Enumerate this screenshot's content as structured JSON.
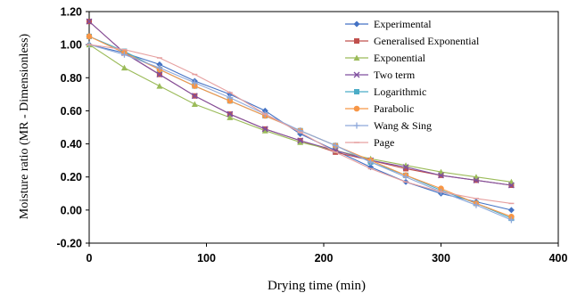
{
  "chart_data": {
    "type": "line",
    "xlabel": "Drying time (min)",
    "ylabel": "Moisture ratio (MR - Dimensionless)",
    "xlim": [
      0,
      400
    ],
    "ylim": [
      -0.2,
      1.2
    ],
    "xticks": [
      0,
      100,
      200,
      300,
      400
    ],
    "yticks": [
      -0.2,
      0.0,
      0.2,
      0.4,
      0.6,
      0.8,
      1.0,
      1.2
    ],
    "xtick_labels": [
      "0",
      "100",
      "200",
      "300",
      "400"
    ],
    "ytick_labels": [
      "-0.20",
      "0.00",
      "0.20",
      "0.40",
      "0.60",
      "0.80",
      "1.00",
      "1.20"
    ],
    "grid": false,
    "legend_position": "right",
    "x": [
      0,
      30,
      60,
      90,
      120,
      150,
      180,
      210,
      240,
      270,
      300,
      330,
      360
    ],
    "series": [
      {
        "name": "Experimental",
        "color": "#4472C4",
        "marker": "diamond",
        "values": [
          1.0,
          0.95,
          0.88,
          0.78,
          0.7,
          0.6,
          0.46,
          0.36,
          0.26,
          0.17,
          0.1,
          0.05,
          0.0
        ]
      },
      {
        "name": "Generalised Exponential",
        "color": "#C0504D",
        "marker": "square",
        "values": [
          1.14,
          0.95,
          0.82,
          0.69,
          0.58,
          0.49,
          0.42,
          0.35,
          0.3,
          0.25,
          0.21,
          0.18,
          0.15
        ]
      },
      {
        "name": "Exponential",
        "color": "#9BBB59",
        "marker": "triangle",
        "values": [
          1.0,
          0.86,
          0.75,
          0.64,
          0.56,
          0.48,
          0.41,
          0.36,
          0.31,
          0.27,
          0.23,
          0.2,
          0.17
        ]
      },
      {
        "name": "Two term",
        "color": "#7F4F9F",
        "marker": "x",
        "values": [
          1.14,
          0.95,
          0.82,
          0.69,
          0.58,
          0.49,
          0.42,
          0.36,
          0.3,
          0.26,
          0.21,
          0.18,
          0.15
        ]
      },
      {
        "name": "Logarithmic",
        "color": "#4BACC6",
        "marker": "square",
        "values": [
          1.05,
          0.96,
          0.85,
          0.75,
          0.66,
          0.57,
          0.48,
          0.39,
          0.29,
          0.21,
          0.12,
          0.04,
          -0.05
        ]
      },
      {
        "name": "Parabolic",
        "color": "#F79646",
        "marker": "circle",
        "values": [
          1.05,
          0.95,
          0.85,
          0.75,
          0.66,
          0.57,
          0.48,
          0.39,
          0.3,
          0.21,
          0.13,
          0.04,
          -0.04
        ]
      },
      {
        "name": "Wang & Sing",
        "color": "#8EA9DB",
        "marker": "plus",
        "values": [
          1.0,
          0.94,
          0.86,
          0.77,
          0.68,
          0.58,
          0.48,
          0.39,
          0.29,
          0.2,
          0.11,
          0.03,
          -0.06
        ]
      },
      {
        "name": "Page",
        "color": "#E6A0A0",
        "marker": "dash",
        "values": [
          1.0,
          0.97,
          0.92,
          0.82,
          0.71,
          0.58,
          0.47,
          0.35,
          0.25,
          0.17,
          0.11,
          0.07,
          0.04
        ]
      }
    ]
  }
}
